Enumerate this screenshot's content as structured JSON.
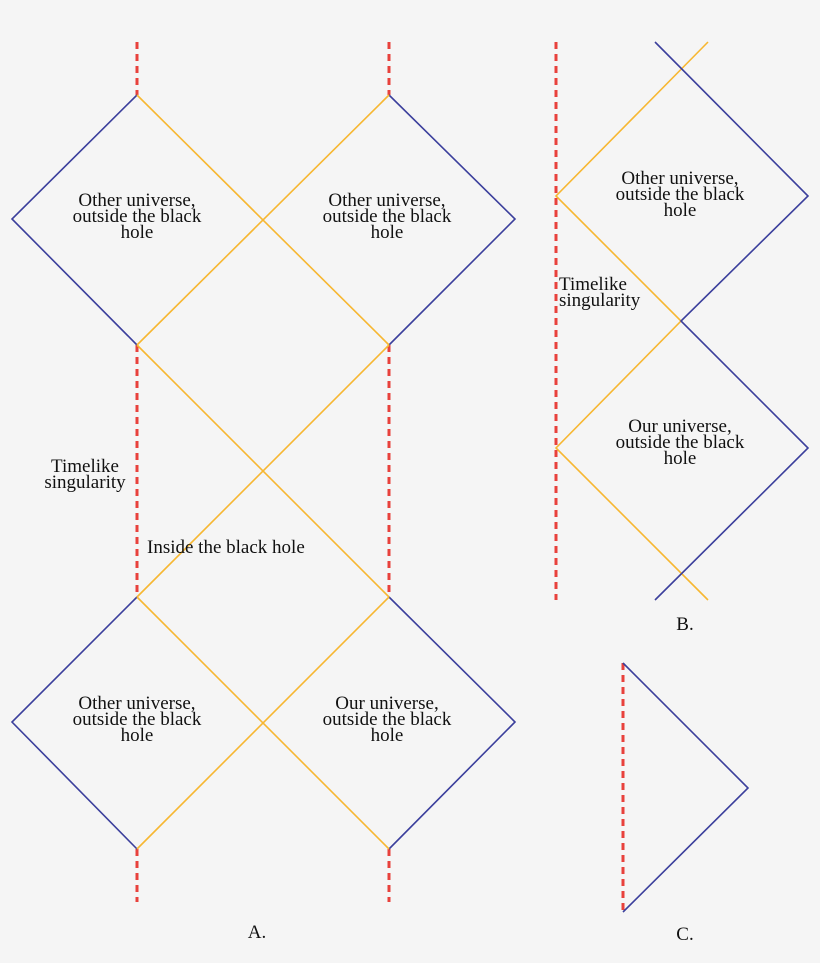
{
  "panel_a": {
    "label": "A.",
    "regions": [
      {
        "lines": [
          "Other universe,",
          "outside the black",
          "hole"
        ]
      },
      {
        "lines": [
          "Other universe,",
          "outside the black",
          "hole"
        ]
      },
      {
        "lines": [
          "Other universe,",
          "outside the black",
          "hole"
        ]
      },
      {
        "lines": [
          "Our universe,",
          "outside the black",
          "hole"
        ]
      }
    ],
    "singularity": {
      "lines": [
        "Timelike",
        "singularity"
      ]
    },
    "interior": "Inside the black hole"
  },
  "panel_b": {
    "label": "B.",
    "regions": [
      {
        "lines": [
          "Other universe,",
          "outside the black",
          "hole"
        ]
      },
      {
        "lines": [
          "Our universe,",
          "outside the black",
          "hole"
        ]
      }
    ],
    "singularity": {
      "lines": [
        "Timelike",
        "singularity"
      ]
    }
  },
  "panel_c": {
    "label": "C."
  }
}
